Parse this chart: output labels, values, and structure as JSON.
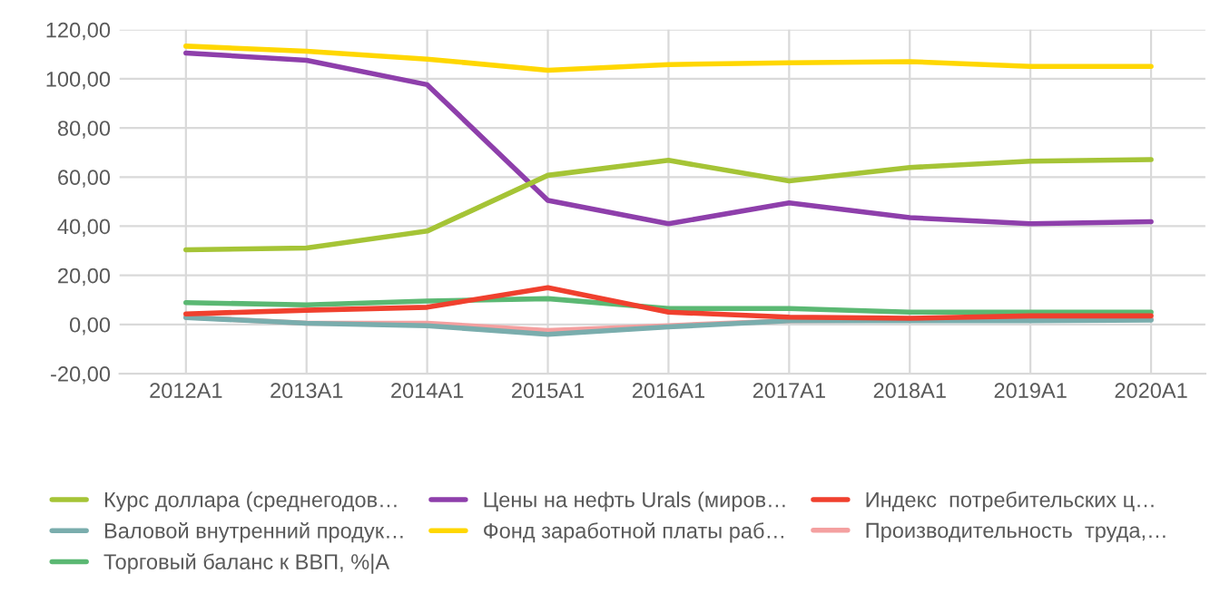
{
  "chart_data": {
    "type": "line",
    "categories": [
      "2012A1",
      "2013A1",
      "2014A1",
      "2015A1",
      "2016A1",
      "2017A1",
      "2018A1",
      "2019A1",
      "2020A1"
    ],
    "series": [
      {
        "name": "Курс доллара (среднегодов…",
        "color": "#a5c436",
        "values": [
          30.4,
          31.1,
          38.0,
          60.7,
          66.8,
          58.4,
          63.9,
          66.5,
          67.1
        ]
      },
      {
        "name": "Цены на нефть Urals (миров…",
        "color": "#8e3fab",
        "values": [
          110.5,
          107.5,
          97.6,
          50.5,
          41.0,
          49.5,
          43.5,
          41.0,
          41.8
        ]
      },
      {
        "name": "Индекс  потребительских ц…",
        "color": "#f0402e",
        "values": [
          4.3,
          5.8,
          7.0,
          15.0,
          5.0,
          3.0,
          2.5,
          3.5,
          3.5
        ]
      },
      {
        "name": "Валовой внутренний продук…",
        "color": "#7aadad",
        "values": [
          2.8,
          0.5,
          -0.5,
          -4.0,
          -1.0,
          1.5,
          1.5,
          1.5,
          1.8
        ]
      },
      {
        "name": "Фонд заработной платы раб…",
        "color": "#ffd700",
        "values": [
          113.3,
          111.2,
          108.0,
          103.5,
          105.8,
          106.5,
          107.0,
          105.0,
          105.0
        ]
      },
      {
        "name": "Производительность  труда,…",
        "color": "#f4a0a0",
        "values": [
          3.0,
          0.5,
          0.5,
          -2.5,
          -0.5,
          1.5,
          1.8,
          2.0,
          2.2
        ]
      },
      {
        "name": "Торговый баланс к ВВП, %|A",
        "color": "#5bb873",
        "values": [
          8.9,
          8.0,
          9.5,
          10.5,
          6.5,
          6.5,
          5.0,
          5.0,
          5.0
        ]
      }
    ],
    "ylim": [
      -20,
      120
    ],
    "yticks": [
      {
        "value": -20,
        "label": "-20,00"
      },
      {
        "value": 0,
        "label": "0,00"
      },
      {
        "value": 20,
        "label": "20,00"
      },
      {
        "value": 40,
        "label": "40,00"
      },
      {
        "value": 60,
        "label": "60,00"
      },
      {
        "value": 80,
        "label": "80,00"
      },
      {
        "value": 100,
        "label": "100,00"
      },
      {
        "value": 120,
        "label": "120,00"
      }
    ],
    "grid": true,
    "legend": "bottom",
    "marker": "none",
    "line_style": "solid"
  }
}
